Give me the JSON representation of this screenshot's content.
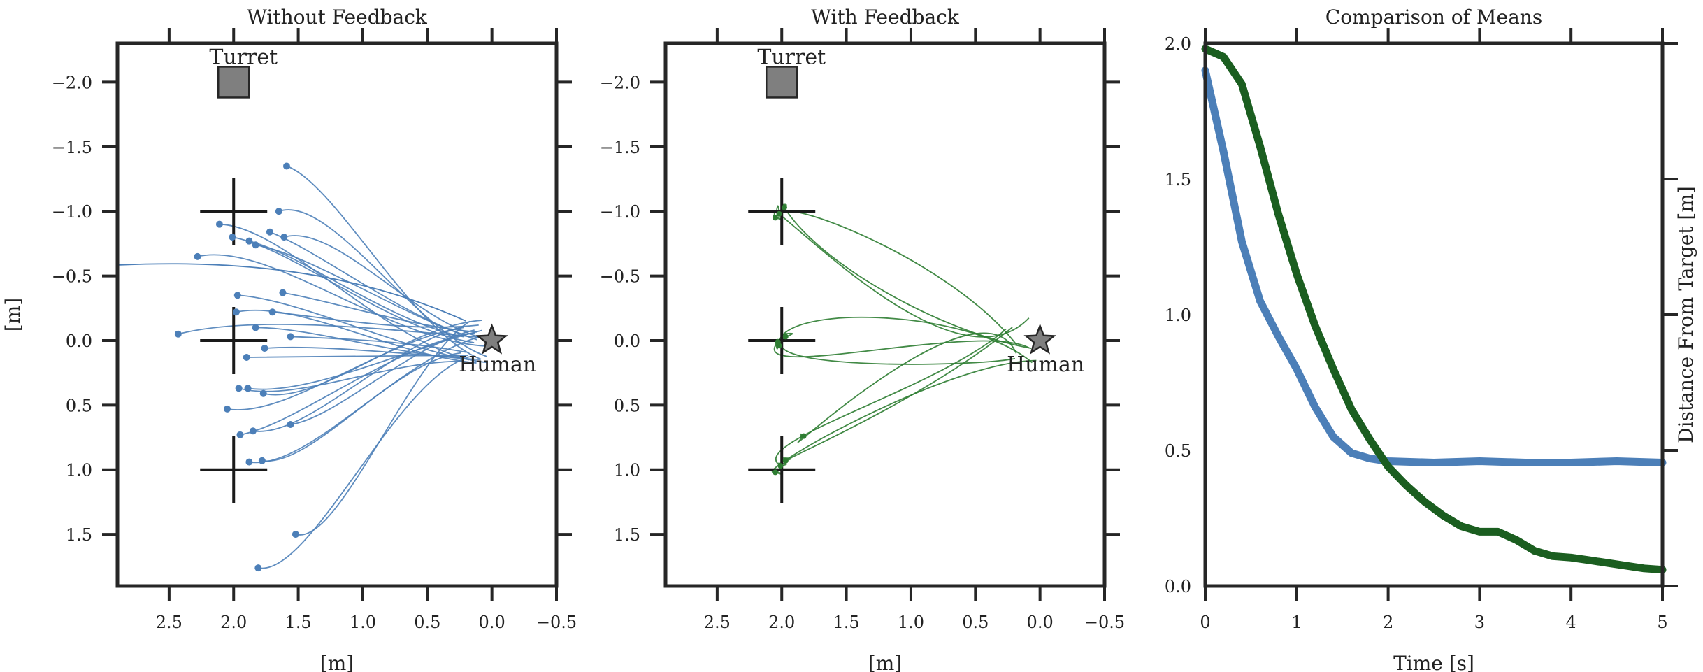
{
  "chart_data": [
    {
      "type": "scatter",
      "panel_id": "no_feedback",
      "title": "Without Feedback",
      "xlabel": "[m]",
      "ylabel": "[m]",
      "xlim": [
        2.9,
        -0.5
      ],
      "ylim": [
        -2.3,
        1.9
      ],
      "xticks": [
        "2.5",
        "2.0",
        "1.5",
        "1.0",
        "0.5",
        "0.0",
        "−0.5"
      ],
      "xtick_values": [
        2.5,
        2.0,
        1.5,
        1.0,
        0.5,
        0.0,
        -0.5
      ],
      "yticks": [
        "−2.0",
        "−1.5",
        "−1.0",
        "−0.5",
        "0.0",
        "0.5",
        "1.0",
        "1.5"
      ],
      "ytick_values": [
        -2.0,
        -1.5,
        -1.0,
        -0.5,
        0.0,
        0.5,
        1.0,
        1.5
      ],
      "line_color": "#4c7fb8",
      "turret": {
        "label": "Turret",
        "x": 2.0,
        "y": -2.0
      },
      "human": {
        "label": "Human",
        "x": 0.0,
        "y": 0.0
      },
      "targets": [
        {
          "x": 2.0,
          "y": -1.0
        },
        {
          "x": 2.0,
          "y": 0.0
        },
        {
          "x": 2.0,
          "y": 1.0
        }
      ],
      "endpoints": [
        {
          "x": 1.59,
          "y": -1.35
        },
        {
          "x": 1.65,
          "y": -1.0
        },
        {
          "x": 2.11,
          "y": -0.9
        },
        {
          "x": 2.01,
          "y": -0.8
        },
        {
          "x": 1.88,
          "y": -0.77
        },
        {
          "x": 1.83,
          "y": -0.74
        },
        {
          "x": 1.72,
          "y": -0.84
        },
        {
          "x": 1.61,
          "y": -0.8
        },
        {
          "x": 2.28,
          "y": -0.65
        },
        {
          "x": 1.97,
          "y": -0.35
        },
        {
          "x": 1.62,
          "y": -0.37
        },
        {
          "x": 1.7,
          "y": -0.22
        },
        {
          "x": 1.98,
          "y": -0.22
        },
        {
          "x": 1.83,
          "y": -0.1
        },
        {
          "x": 2.43,
          "y": -0.05
        },
        {
          "x": 1.56,
          "y": -0.03
        },
        {
          "x": 1.76,
          "y": 0.06
        },
        {
          "x": 1.9,
          "y": 0.13
        },
        {
          "x": 1.96,
          "y": 0.37
        },
        {
          "x": 1.89,
          "y": 0.37
        },
        {
          "x": 1.77,
          "y": 0.41
        },
        {
          "x": 2.05,
          "y": 0.53
        },
        {
          "x": 1.95,
          "y": 0.73
        },
        {
          "x": 1.85,
          "y": 0.7
        },
        {
          "x": 1.56,
          "y": 0.65
        },
        {
          "x": 1.88,
          "y": 0.94
        },
        {
          "x": 1.78,
          "y": 0.93
        },
        {
          "x": 1.52,
          "y": 1.5
        },
        {
          "x": 1.81,
          "y": 1.76
        }
      ],
      "start_region": {
        "x": 0.15,
        "y": 0.0
      },
      "end_markers": true
    },
    {
      "type": "scatter",
      "panel_id": "with_feedback",
      "title": "With Feedback",
      "xlabel": "[m]",
      "ylabel": "",
      "xlim": [
        2.9,
        -0.5
      ],
      "ylim": [
        -2.3,
        1.9
      ],
      "xticks": [
        "2.5",
        "2.0",
        "1.5",
        "1.0",
        "0.5",
        "0.0",
        "−0.5"
      ],
      "xtick_values": [
        2.5,
        2.0,
        1.5,
        1.0,
        0.5,
        0.0,
        -0.5
      ],
      "yticks": [
        "−2.0",
        "−1.5",
        "−1.0",
        "−0.5",
        "0.0",
        "0.5",
        "1.0",
        "1.5"
      ],
      "ytick_values": [
        -2.0,
        -1.5,
        -1.0,
        -0.5,
        0.0,
        0.5,
        1.0,
        1.5
      ],
      "line_color": "#2e7d32",
      "turret": {
        "label": "Turret",
        "x": 2.0,
        "y": -2.0
      },
      "human": {
        "label": "Human",
        "x": 0.0,
        "y": 0.0
      },
      "targets": [
        {
          "x": 2.0,
          "y": -1.0
        },
        {
          "x": 2.0,
          "y": 0.0
        },
        {
          "x": 2.0,
          "y": 1.0
        }
      ],
      "endpoints": [
        {
          "x": 2.02,
          "y": -0.98
        },
        {
          "x": 1.98,
          "y": -1.03
        },
        {
          "x": 2.05,
          "y": -0.95
        },
        {
          "x": 2.03,
          "y": 0.01
        },
        {
          "x": 1.97,
          "y": -0.03
        },
        {
          "x": 2.02,
          "y": 0.04
        },
        {
          "x": 2.01,
          "y": 0.97
        },
        {
          "x": 1.97,
          "y": 0.93
        },
        {
          "x": 1.83,
          "y": 0.74
        },
        {
          "x": 2.05,
          "y": 1.02
        }
      ],
      "start_region": {
        "x": 0.15,
        "y": 0.0
      },
      "end_markers": true
    },
    {
      "type": "line",
      "panel_id": "comparison",
      "title": "Comparison of Means",
      "xlabel": "Time [s]",
      "ylabel": "Distance From Target [m]",
      "xlim": [
        0,
        5
      ],
      "ylim": [
        0,
        2.0
      ],
      "xticks": [
        "0",
        "1",
        "2",
        "3",
        "4",
        "5"
      ],
      "xtick_values": [
        0,
        1,
        2,
        3,
        4,
        5
      ],
      "yticks": [
        "0.0",
        "0.5",
        "1.0",
        "1.5",
        "2.0"
      ],
      "ytick_values": [
        0.0,
        0.5,
        1.0,
        1.5,
        2.0
      ],
      "series": [
        {
          "name": "Without Feedback",
          "color": "#4c7fb8",
          "x": [
            0,
            0.2,
            0.4,
            0.6,
            0.8,
            1.0,
            1.2,
            1.4,
            1.6,
            1.8,
            2.0,
            2.5,
            3.0,
            3.5,
            4.0,
            4.5,
            5.0
          ],
          "y": [
            1.9,
            1.6,
            1.27,
            1.05,
            0.92,
            0.8,
            0.66,
            0.55,
            0.49,
            0.47,
            0.46,
            0.455,
            0.46,
            0.455,
            0.455,
            0.46,
            0.455
          ]
        },
        {
          "name": "With Feedback",
          "color": "#1b5e20",
          "x": [
            0,
            0.2,
            0.4,
            0.6,
            0.8,
            1.0,
            1.2,
            1.4,
            1.6,
            1.8,
            2.0,
            2.2,
            2.4,
            2.6,
            2.8,
            3.0,
            3.2,
            3.4,
            3.6,
            3.8,
            4.0,
            4.2,
            4.4,
            4.6,
            4.8,
            5.0
          ],
          "y": [
            1.98,
            1.95,
            1.85,
            1.62,
            1.37,
            1.15,
            0.96,
            0.8,
            0.65,
            0.54,
            0.44,
            0.37,
            0.31,
            0.26,
            0.22,
            0.2,
            0.2,
            0.17,
            0.13,
            0.11,
            0.105,
            0.095,
            0.085,
            0.075,
            0.065,
            0.06
          ]
        }
      ]
    }
  ]
}
